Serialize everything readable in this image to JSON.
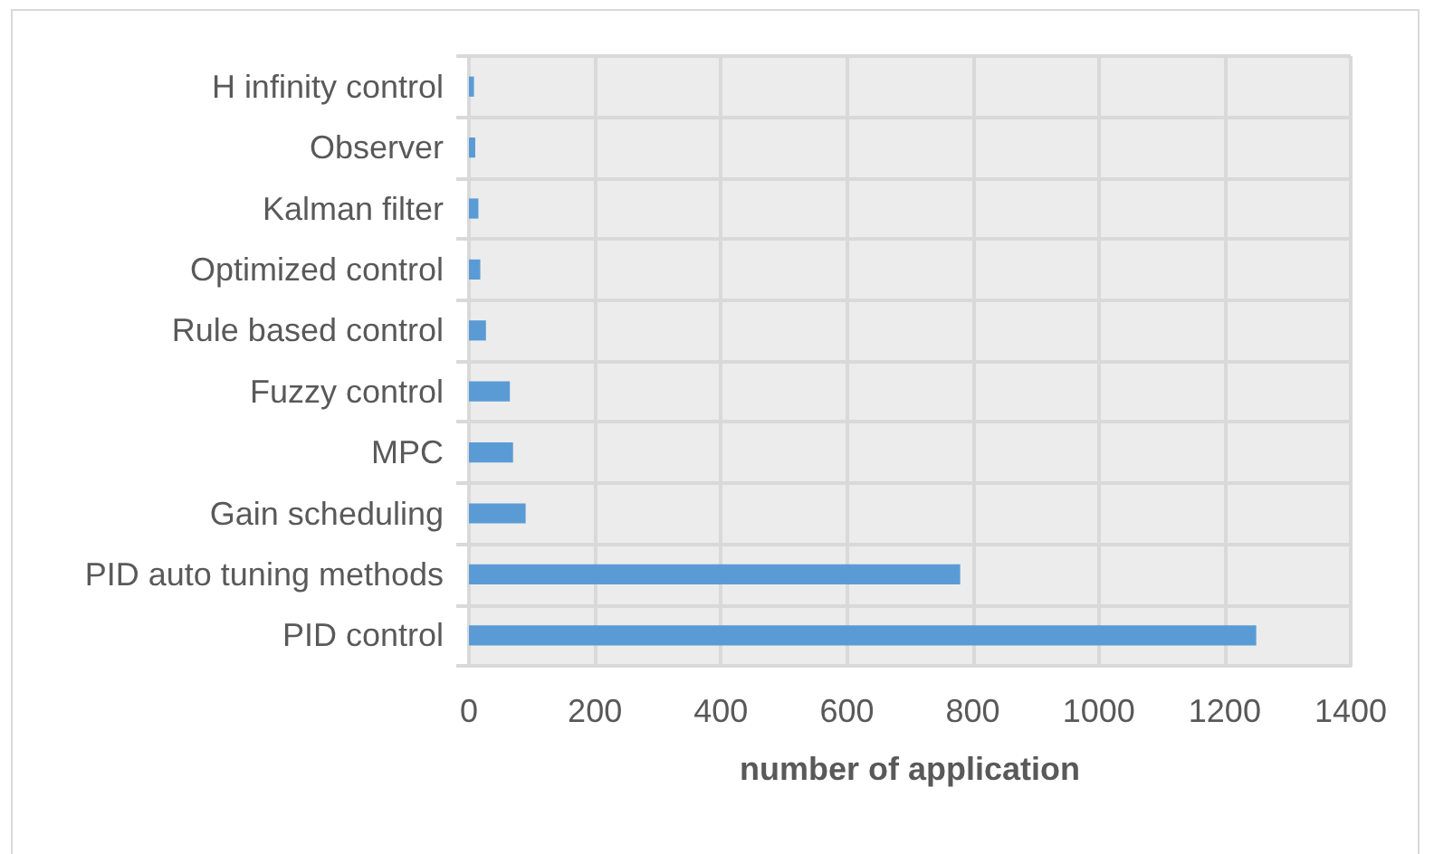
{
  "chart_data": {
    "type": "bar",
    "orientation": "horizontal",
    "categories": [
      "H infinity control",
      "Observer",
      "Kalman filter",
      "Optimized control",
      "Rule based control",
      "Fuzzy control",
      "MPC",
      "Gain scheduling",
      "PID auto tuning methods",
      "PID control"
    ],
    "values": [
      8,
      10,
      15,
      18,
      27,
      65,
      70,
      90,
      780,
      1250
    ],
    "color": "#5b9bd5",
    "xlabel": "number of application",
    "xlim": [
      0,
      1400
    ],
    "xticks": [
      0,
      200,
      400,
      600,
      800,
      1000,
      1200,
      1400
    ],
    "grid": true
  }
}
